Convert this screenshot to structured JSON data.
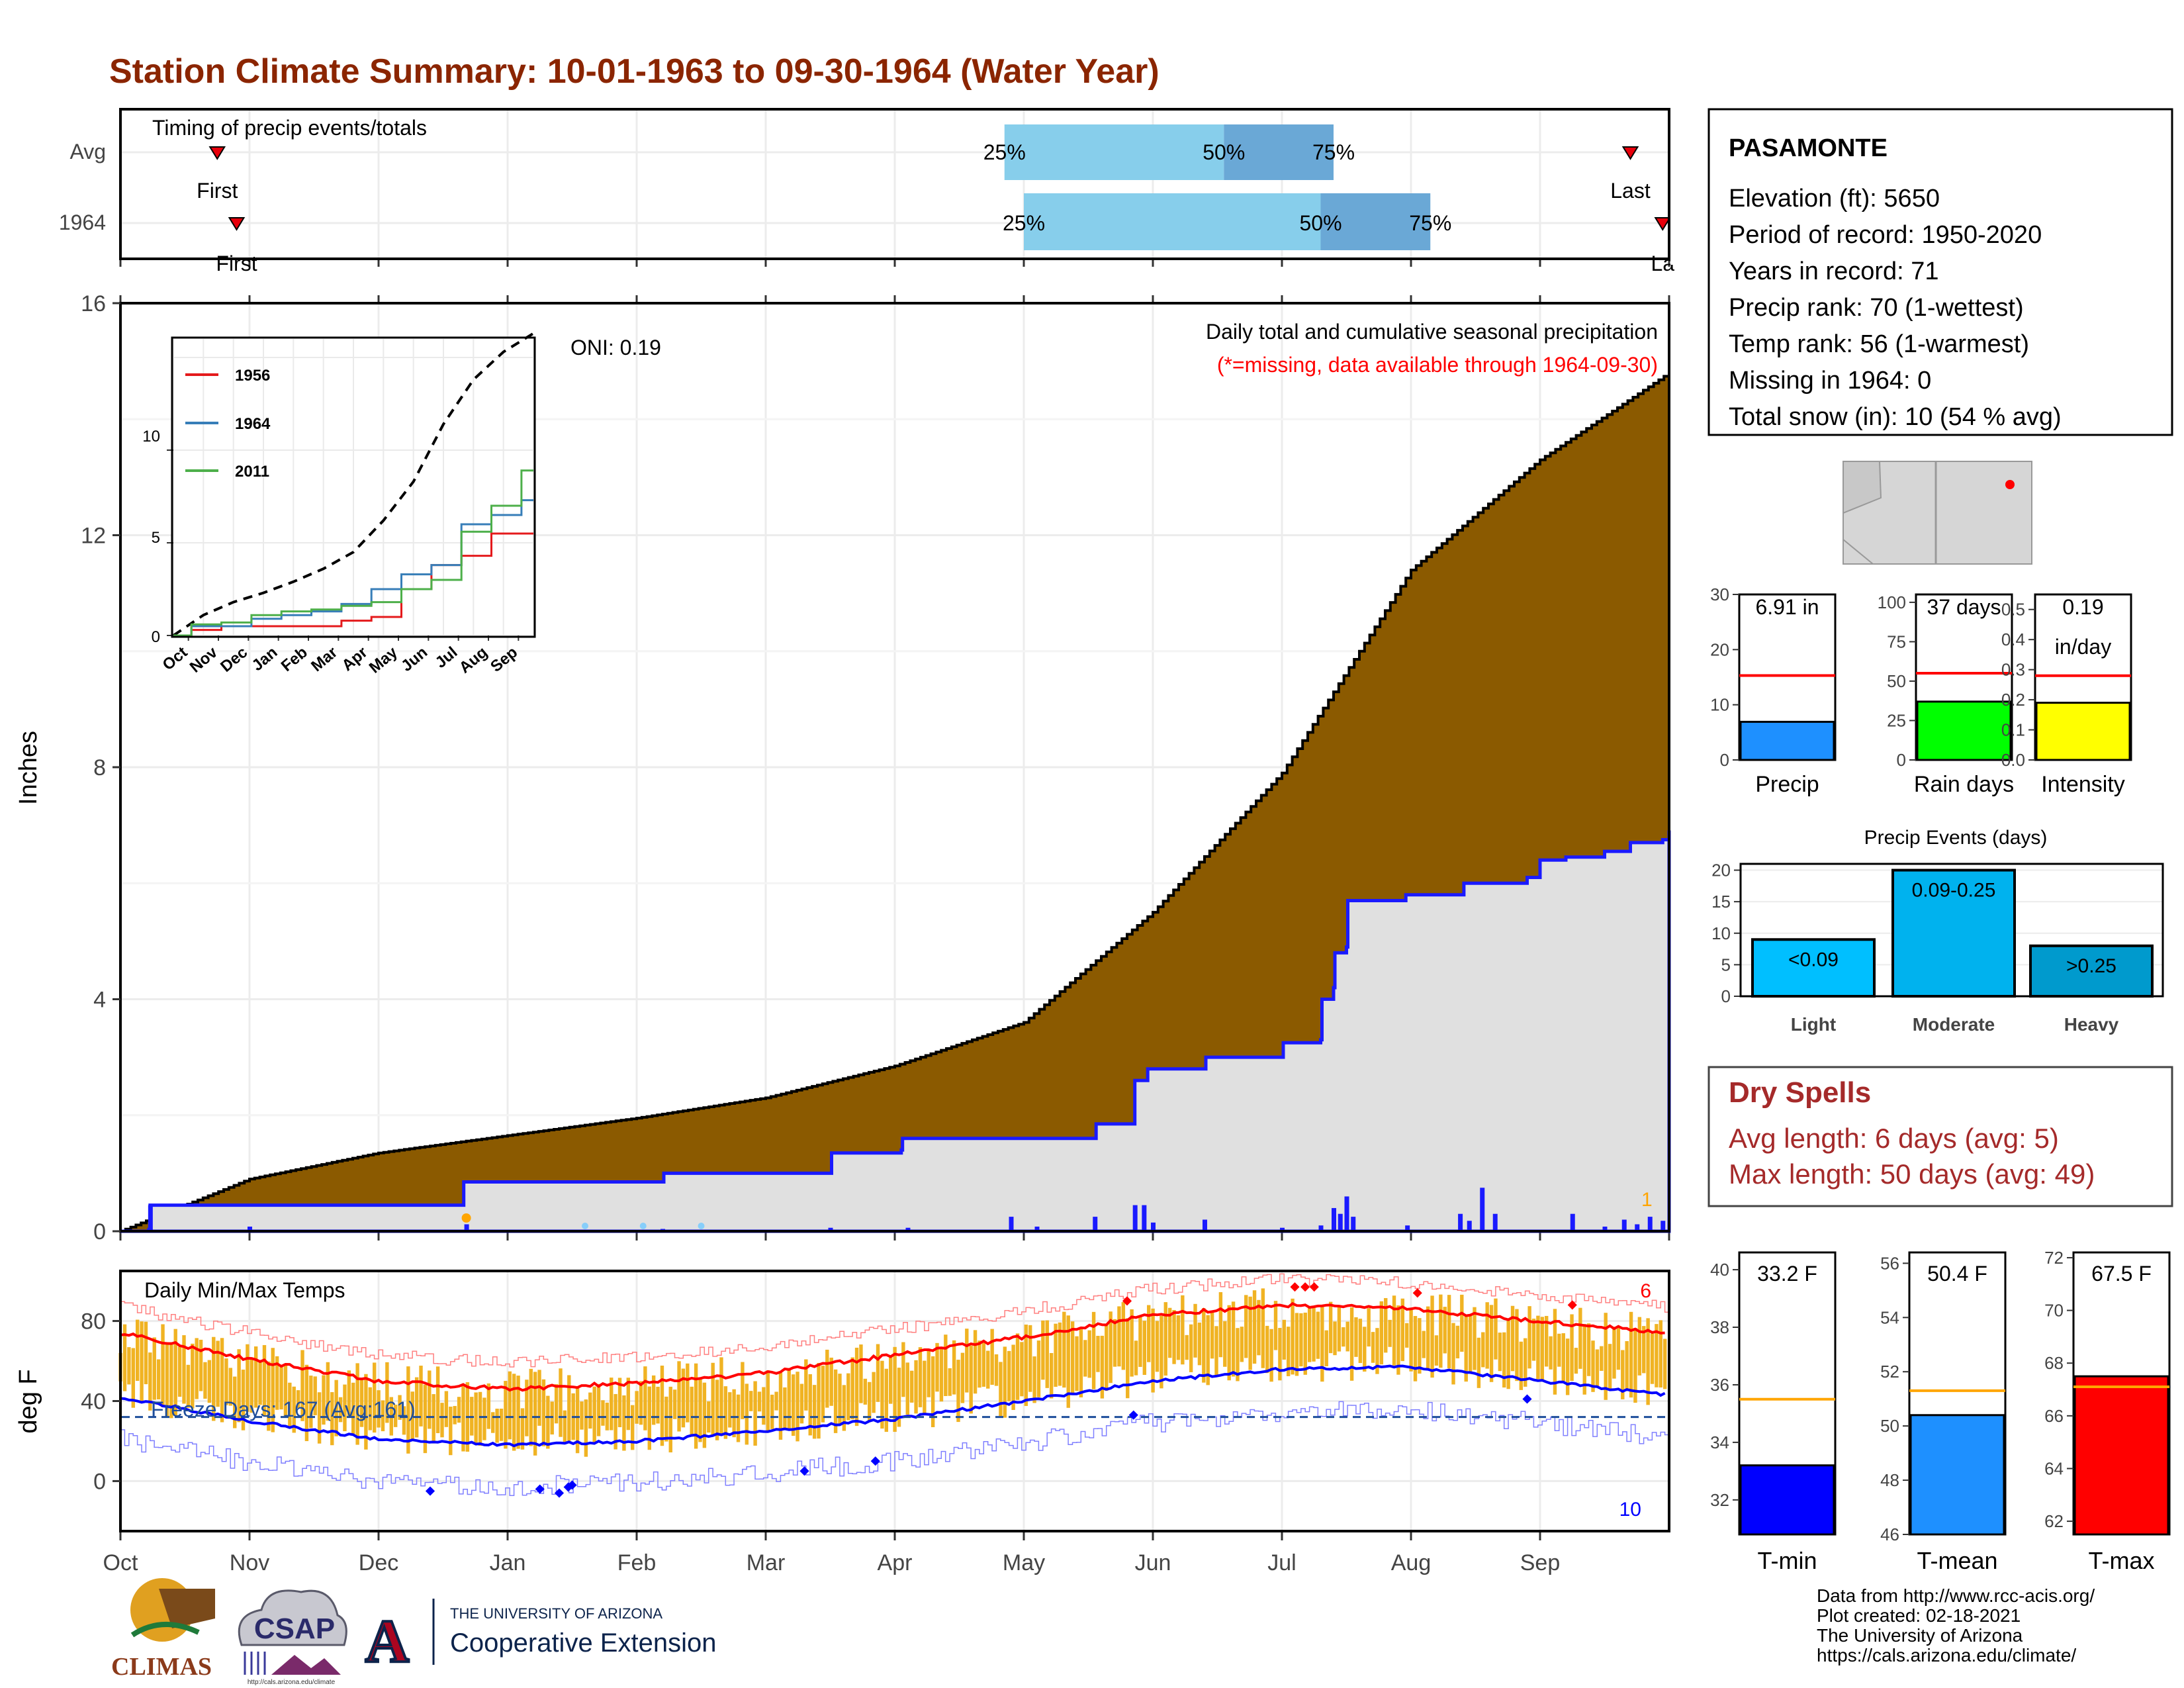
{
  "title": "Station Climate Summary: 10-01-1963 to 09-30-1964 (Water Year)",
  "colors": {
    "title": "#8b2500",
    "cumulative_fill": "#8b5a00",
    "year_fill": "#e0e0e0",
    "year_line": "#1a1aff",
    "pct_light": "#87ceeb",
    "pct_dark": "#6aa8d6",
    "red": "#ff0000",
    "temp_bar": "#f0b323",
    "tmin": "#0000ff",
    "tmean": "#1e90ff",
    "tmax": "#ff0000",
    "dry_spells": "#a52a2a"
  },
  "timing": {
    "title": "Timing of precip events/totals",
    "rows": [
      {
        "label": "Avg",
        "first_label": "First",
        "last_label": "Last",
        "first_month": 0.75,
        "last_month": 11.7,
        "p25": 6.85,
        "p50": 8.55,
        "p75": 9.4,
        "p25_label": "25%",
        "p50_label": "50%",
        "p75_label": "75%"
      },
      {
        "label": "1964",
        "first_label": "First",
        "last_label": "La",
        "first_month": 0.9,
        "last_month": 11.95,
        "p25": 7.0,
        "p50": 9.3,
        "p75": 10.15,
        "p25_label": "25%",
        "p50_label": "50%",
        "p75_label": "75%"
      }
    ]
  },
  "precip_panel": {
    "ylabel": "Inches",
    "note1": "Daily total and cumulative seasonal precipitation",
    "note2": "(*=missing, data available through 1964-09-30)",
    "oni": "ONI: 0.19",
    "corner_count": "1"
  },
  "inset": {
    "legend": [
      "1956",
      "1964",
      "2011"
    ],
    "colors": [
      "#e41a1c",
      "#377eb8",
      "#4daf4a"
    ],
    "ylabels": [
      "0",
      "5",
      "10"
    ],
    "xlabels": [
      "Oct",
      "Nov",
      "Dec",
      "Jan",
      "Feb",
      "Mar",
      "Apr",
      "May",
      "Jun",
      "Jul",
      "Aug",
      "Sep"
    ]
  },
  "temp_panel": {
    "ylabel": "deg F",
    "title": "Daily Min/Max Temps",
    "freeze": "Freeze Days: 167 (Avg:161)",
    "count_hot": "6",
    "count_cold": "10"
  },
  "months": [
    "Oct",
    "Nov",
    "Dec",
    "Jan",
    "Feb",
    "Mar",
    "Apr",
    "May",
    "Jun",
    "Jul",
    "Aug",
    "Sep"
  ],
  "station": {
    "name": "PASAMONTE",
    "lines": [
      "Elevation (ft): 5650",
      "Period of record: 1950-2020",
      "Years in record: 71",
      "Precip rank: 70 (1-wettest)",
      "Temp rank: 56 (1-warmest)",
      "Missing in 1964: 0",
      "Total snow (in): 10 (54 % avg)"
    ]
  },
  "mini_bars": [
    {
      "label": "Precip",
      "value_label": "6.91 in",
      "value": 6.91,
      "avg": 15.3,
      "max": 30,
      "ticks": [
        "0",
        "10",
        "20",
        "30"
      ],
      "tickvals": [
        0,
        10,
        20,
        30
      ],
      "color": "#1e90ff"
    },
    {
      "label": "Rain days",
      "value_label": "37 days",
      "value": 37,
      "avg": 55,
      "max": 105,
      "ticks": [
        "0",
        "25",
        "50",
        "75",
        "100"
      ],
      "tickvals": [
        0,
        25,
        50,
        75,
        100
      ],
      "color": "#00ff00"
    },
    {
      "label": "Intensity",
      "value_label": "0.19",
      "value_label2": "in/day",
      "value": 0.19,
      "avg": 0.28,
      "max": 0.55,
      "ticks": [
        "0.0",
        "0.1",
        "0.2",
        "0.3",
        "0.4",
        "0.5"
      ],
      "tickvals": [
        0,
        0.1,
        0.2,
        0.3,
        0.4,
        0.5
      ],
      "color": "#ffff00"
    }
  ],
  "precip_events": {
    "title": "Precip Events (days)",
    "categories": [
      "Light",
      "Moderate",
      "Heavy"
    ],
    "labels": [
      "<0.09",
      "0.09-0.25",
      ">0.25"
    ],
    "values": [
      9,
      20,
      8
    ],
    "colors": [
      "#00bfff",
      "#00b2ee",
      "#009acd"
    ],
    "ticks": [
      "0",
      "5",
      "10",
      "15",
      "20"
    ]
  },
  "dry_spells": {
    "title": "Dry Spells",
    "avg": "Avg length: 6 days (avg: 5)",
    "max": "Max length: 50 days (avg: 49)"
  },
  "temp_bars": [
    {
      "label": "T-min",
      "value_label": "33.2 F",
      "value": 33.2,
      "avg": 35.5,
      "ymin": 30.8,
      "ymax": 40.6,
      "ticks": [
        "32",
        "34",
        "36",
        "38",
        "40"
      ],
      "tickvals": [
        32,
        34,
        36,
        38,
        40
      ],
      "color": "#0000ff"
    },
    {
      "label": "T-mean",
      "value_label": "50.4 F",
      "value": 50.4,
      "avg": 51.3,
      "ymin": 46,
      "ymax": 56.4,
      "ticks": [
        "46",
        "48",
        "50",
        "52",
        "54",
        "56"
      ],
      "tickvals": [
        46,
        48,
        50,
        52,
        54,
        56
      ],
      "color": "#1e90ff"
    },
    {
      "label": "T-max",
      "value_label": "67.5 F",
      "value": 67.5,
      "avg": 67.1,
      "ymin": 61.5,
      "ymax": 72.2,
      "ticks": [
        "62",
        "64",
        "66",
        "68",
        "70",
        "72"
      ],
      "tickvals": [
        62,
        64,
        66,
        68,
        70,
        72
      ],
      "color": "#ff0000"
    }
  ],
  "footer": {
    "lines": [
      "Data from http://www.rcc-acis.org/",
      "Plot created: 02-18-2021",
      "The University of Arizona",
      "https://cals.arizona.edu/climate/"
    ],
    "logo1": "CLIMAS",
    "logo2": "CSAP",
    "logo2_url": "http://cals.arizona.edu/climate",
    "logo3_top": "THE UNIVERSITY OF ARIZONA",
    "logo3_bottom": "Cooperative Extension",
    "logo3_letter": "A"
  },
  "chart_data": {
    "type": "area",
    "title": "Station Climate Summary: 10-01-1963 to 09-30-1964 (Water Year)",
    "ylabel": "Inches",
    "ylim": [
      0,
      16
    ],
    "x": [
      "Oct",
      "Nov",
      "Dec",
      "Jan",
      "Feb",
      "Mar",
      "Apr",
      "May",
      "Jun",
      "Jul",
      "Aug",
      "Sep",
      "Sep-end"
    ],
    "series": [
      {
        "values": [
          0,
          0.9,
          1.35,
          1.65,
          1.95,
          2.3,
          2.85,
          3.6,
          5.5,
          7.9,
          11.4,
          13.3,
          14.8
        ]
      },
      {
        "name": "1964",
        "values": [
          0,
          0.45,
          0.45,
          0.45,
          0.85,
          1.4,
          1.6,
          1.85,
          2.8,
          3.25,
          5.7,
          6.0,
          6.91
        ]
      }
    ],
    "temperature": {
      "ylabel": "deg F",
      "ylim": [
        -25,
        105
      ],
      "x": [
        "Oct",
        "Nov",
        "Dec",
        "Jan",
        "Feb",
        "Mar",
        "Apr",
        "May",
        "Jun",
        "Jul",
        "Aug",
        "Sep",
        "Sep-end"
      ],
      "avg_max": [
        74,
        61,
        50,
        46,
        49,
        54,
        63,
        72,
        83,
        88,
        86,
        80,
        74
      ],
      "avg_min": [
        42,
        30,
        21,
        18,
        20,
        25,
        31,
        40,
        50,
        56,
        57,
        50,
        43
      ],
      "freeze_line": 32
    }
  }
}
